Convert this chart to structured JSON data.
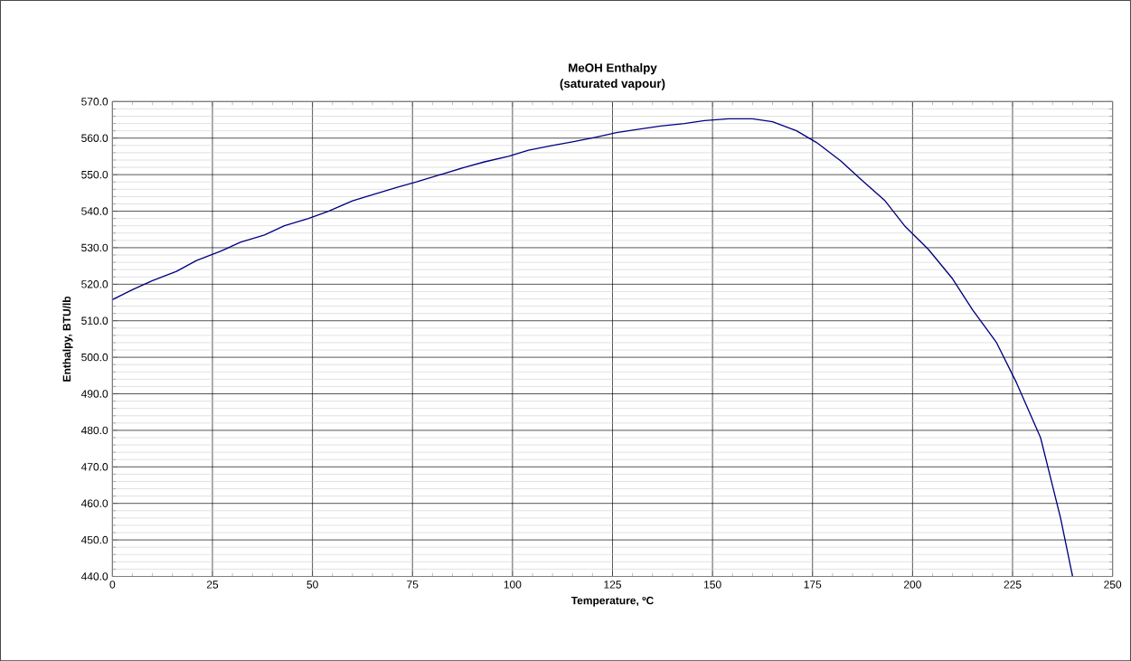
{
  "chart_data": {
    "type": "line",
    "title": "MeOH Enthalpy\n(saturated vapour)",
    "xlabel": "Temperature, ºC",
    "ylabel": "Enthalpy, BTU/lb",
    "series": [
      {
        "color": "#000080",
        "x": [
          0,
          5,
          10,
          16,
          21,
          27,
          32,
          38,
          43,
          49,
          54,
          60,
          65,
          71,
          76,
          82,
          88,
          93,
          99,
          104,
          110,
          115,
          121,
          126,
          132,
          137,
          143,
          148,
          154,
          160,
          165,
          171,
          176,
          182,
          187,
          193,
          198,
          204,
          210,
          215,
          221,
          226,
          232,
          237,
          240
        ],
        "values": [
          515.8,
          518.5,
          521,
          523.5,
          526.5,
          529,
          531.5,
          533.5,
          536,
          538,
          540,
          542.8,
          544.5,
          546.5,
          548,
          550,
          552,
          553.5,
          555,
          556.7,
          558,
          559,
          560.3,
          561.5,
          562.5,
          563.3,
          564,
          564.8,
          565.3,
          565.3,
          564.5,
          562,
          558.8,
          553.8,
          548.8,
          543,
          536,
          529.5,
          521.5,
          513,
          504,
          493,
          478,
          456,
          440
        ]
      }
    ],
    "xlim": [
      0,
      250
    ],
    "xticks": [
      0,
      25,
      50,
      75,
      100,
      125,
      150,
      175,
      200,
      225,
      250
    ],
    "ylim": [
      440,
      570
    ],
    "yticks": [
      {
        "value": 440,
        "label": "440.0"
      },
      {
        "value": 450,
        "label": "450.0"
      },
      {
        "value": 460,
        "label": "460.0"
      },
      {
        "value": 470,
        "label": "470.0"
      },
      {
        "value": 480,
        "label": "480.0"
      },
      {
        "value": 490,
        "label": "490.0"
      },
      {
        "value": 500,
        "label": "500.0"
      },
      {
        "value": 510,
        "label": "510.0"
      },
      {
        "value": 520,
        "label": "520.0"
      },
      {
        "value": 530,
        "label": "530.0"
      },
      {
        "value": 540,
        "label": "540.0"
      },
      {
        "value": 550,
        "label": "550.0"
      },
      {
        "value": 560,
        "label": "560.0"
      },
      {
        "value": 570,
        "label": "570.0"
      }
    ],
    "grid": true,
    "marker": "none",
    "line_style": "solid"
  }
}
